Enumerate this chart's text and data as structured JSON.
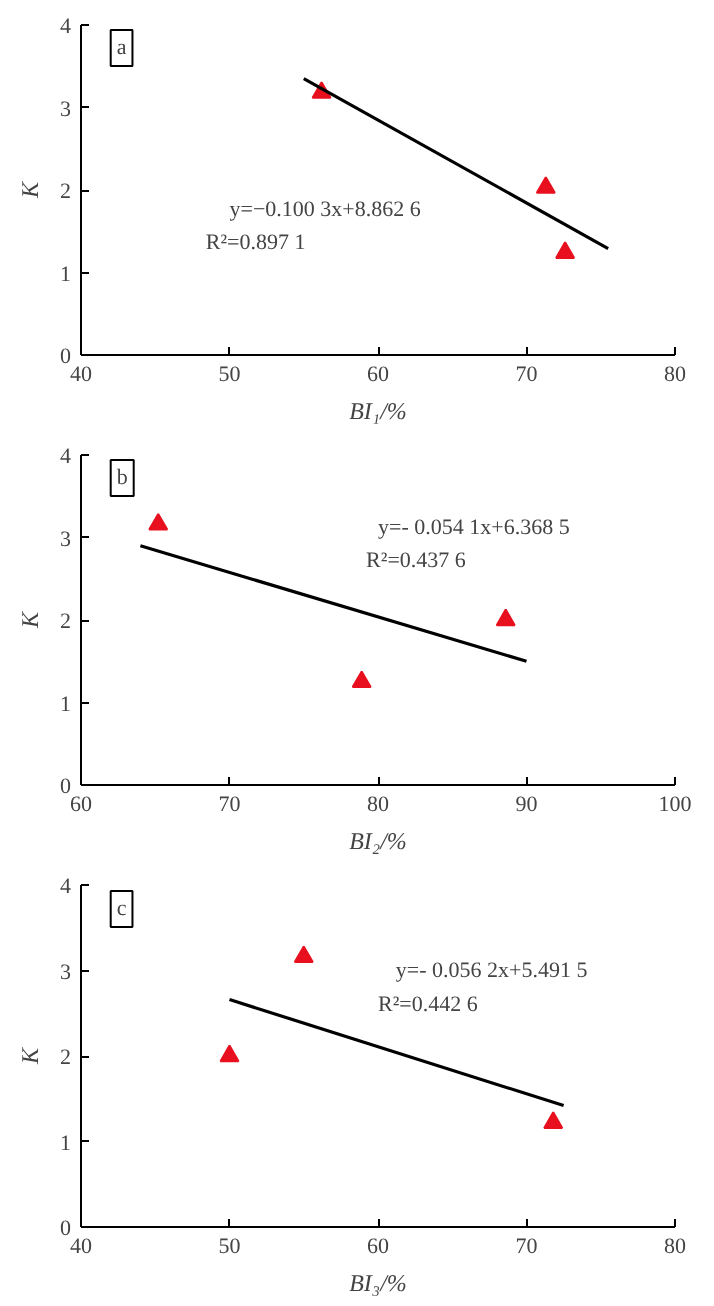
{
  "chart_data": [
    {
      "type": "scatter",
      "xlabel": "BI₁/%",
      "ylabel": "K",
      "xlim": [
        40,
        80
      ],
      "ylim": [
        0,
        4
      ],
      "xticks": [
        40,
        50,
        60,
        70,
        80
      ],
      "yticks": [
        0,
        1,
        2,
        3,
        4
      ],
      "grid": false,
      "annotations": [
        "a",
        "y=−0.100 3x+8.862 6",
        "R²=0.897 1"
      ],
      "series": [
        {
          "color": "#e8101e",
          "marker": "triangle",
          "x": [
            56.2,
            71.3,
            72.6
          ],
          "values": [
            3.18,
            2.03,
            1.24
          ]
        },
        {
          "type": "line",
          "color": "#000000",
          "marker": "none",
          "x": [
            55,
            75.5
          ],
          "values": [
            3.35,
            1.29
          ]
        }
      ]
    },
    {
      "type": "scatter",
      "xlabel": "BI₂/%",
      "ylabel": "K",
      "xlim": [
        60,
        100
      ],
      "ylim": [
        0,
        4
      ],
      "xticks": [
        60,
        70,
        80,
        90,
        100
      ],
      "yticks": [
        0,
        1,
        2,
        3,
        4
      ],
      "grid": false,
      "annotations": [
        "b",
        "y=- 0.054 1x+6.368 5",
        "R²=0.437 6"
      ],
      "series": [
        {
          "color": "#e8101e",
          "marker": "triangle",
          "x": [
            65.2,
            78.9,
            88.6
          ],
          "values": [
            3.16,
            1.25,
            2.0
          ]
        },
        {
          "type": "line",
          "color": "#000000",
          "marker": "none",
          "x": [
            64,
            90
          ],
          "values": [
            2.9,
            1.5
          ]
        }
      ]
    },
    {
      "type": "scatter",
      "xlabel": "BI₃/%",
      "ylabel": "K",
      "xlim": [
        40,
        80
      ],
      "ylim": [
        0,
        4
      ],
      "xticks": [
        40,
        50,
        60,
        70,
        80
      ],
      "yticks": [
        0,
        1,
        2,
        3,
        4
      ],
      "grid": false,
      "annotations": [
        "c",
        "y=- 0.056 2x+5.491 5",
        "R²=0.442 6"
      ],
      "series": [
        {
          "color": "#e8101e",
          "marker": "triangle",
          "x": [
            50,
            55,
            71.8
          ],
          "values": [
            2.0,
            3.16,
            1.22
          ]
        },
        {
          "type": "line",
          "color": "#000000",
          "marker": "none",
          "x": [
            50,
            72.5
          ],
          "values": [
            2.66,
            1.42
          ]
        }
      ]
    }
  ]
}
